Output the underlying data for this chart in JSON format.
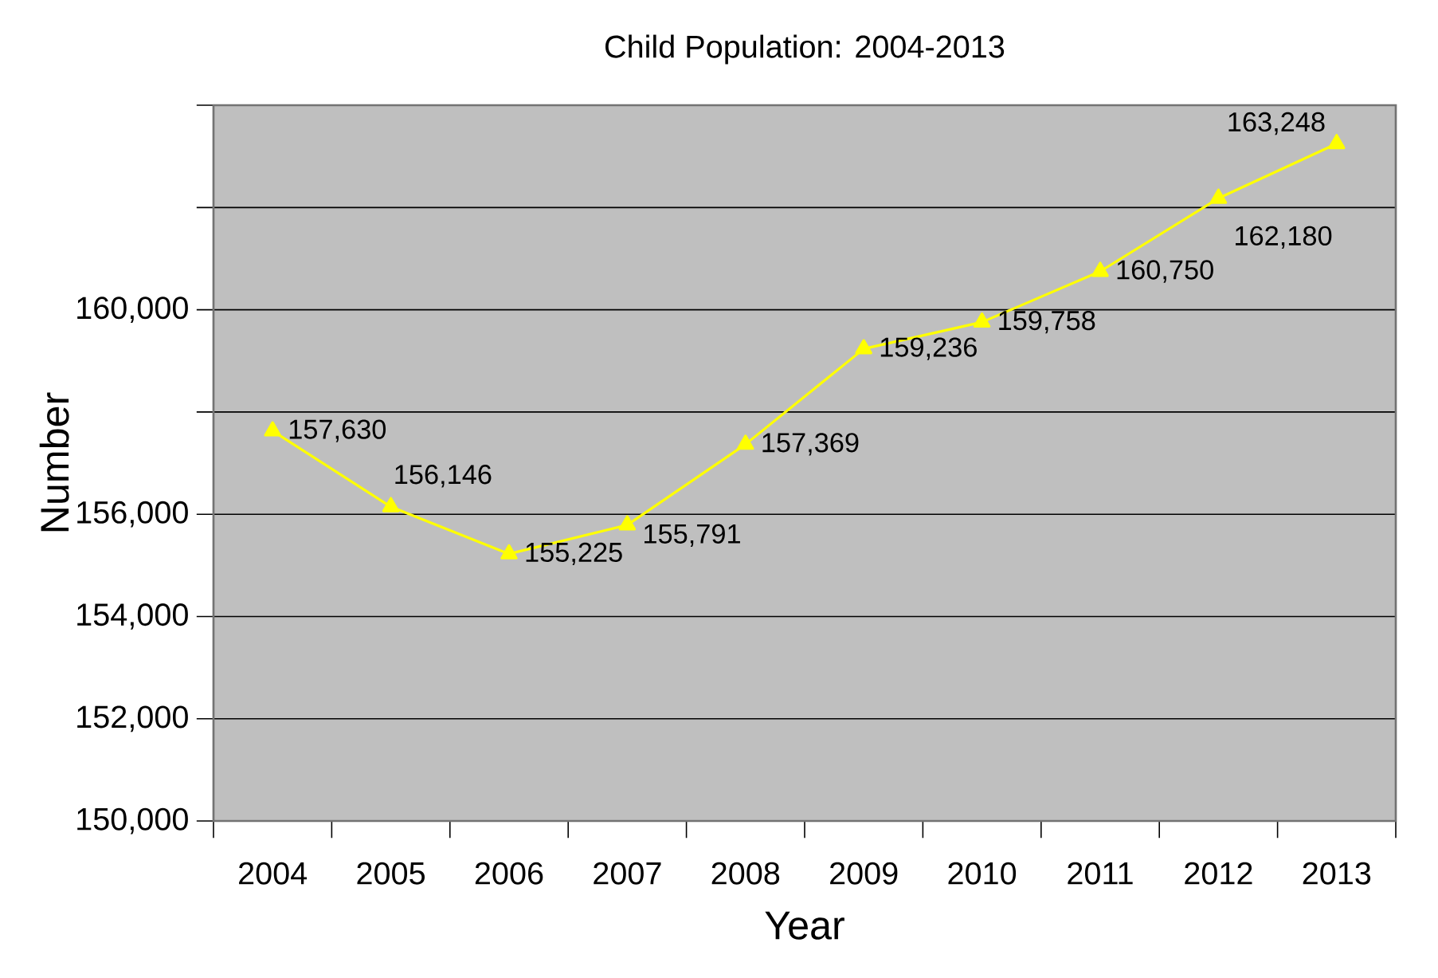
{
  "chart_data": {
    "type": "line",
    "title": "Child  Population: 2004-2013",
    "xlabel": "Year",
    "ylabel": "Number",
    "categories": [
      "2004",
      "2005",
      "2006",
      "2007",
      "2008",
      "2009",
      "2010",
      "2011",
      "2012",
      "2013"
    ],
    "series": [
      {
        "color": "#ffff00",
        "values": [
          157630,
          156146,
          155225,
          155791,
          157369,
          159236,
          159758,
          160750,
          162180,
          163248
        ],
        "value_labels": [
          "157,630",
          "156,146",
          "155,225",
          "155,791",
          "157,369",
          "159,236",
          "159,758",
          "160,750",
          "162,180",
          "163,248"
        ]
      }
    ],
    "ylim": [
      150000,
      164000
    ],
    "yticks": [
      {
        "value": 150000,
        "label": "150,000"
      },
      {
        "value": 152000,
        "label": "152,000"
      },
      {
        "value": 154000,
        "label": "154,000"
      },
      {
        "value": 156000,
        "label": "156,000"
      },
      {
        "value": 158000,
        "label": null
      },
      {
        "value": 160000,
        "label": "160,000"
      },
      {
        "value": 162000,
        "label": null
      },
      {
        "value": 164000,
        "label": null
      }
    ],
    "grid": "y",
    "marker": "triangle",
    "line_style": "solid"
  }
}
